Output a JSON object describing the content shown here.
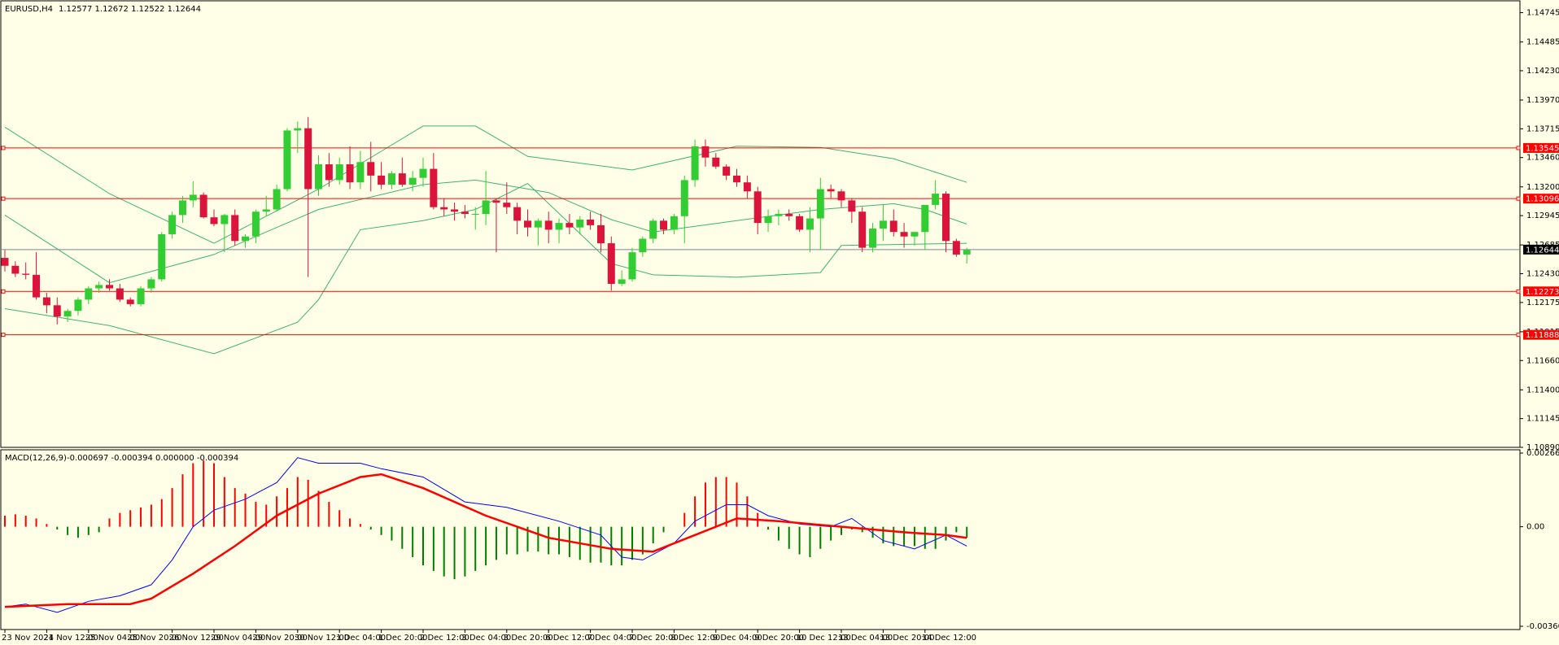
{
  "header": {
    "symbol": "EURUSD,H4",
    "ohlc": "1.12577 1.12672 1.12522 1.12644"
  },
  "colors": {
    "background": "#ffffe8",
    "bull": "#32cd32",
    "bear": "#dc143c",
    "band": "#3cb371",
    "level_line": "#ff0000",
    "bid_line": "#778899",
    "macd_main": "#0000ff",
    "macd_signal": "#ff0000",
    "hist_pos": "#ff0000",
    "hist_neg": "#008000"
  },
  "chart_data": [
    {
      "type": "candlestick",
      "symbol": "EURUSD",
      "timeframe": "H4",
      "ylim": [
        1.1089,
        1.1485
      ],
      "y_ticks": [
        "1.14745",
        "1.14485",
        "1.14230",
        "1.13970",
        "1.13715",
        "1.13460",
        "1.13200",
        "1.12945",
        "1.12685",
        "1.12430",
        "1.12175",
        "1.11915",
        "1.11660",
        "1.11400",
        "1.11145",
        "1.10890"
      ],
      "x_ticks": [
        "23 Nov 2021",
        "24 Nov 12:00",
        "25 Nov 04:00",
        "25 Nov 20:00",
        "26 Nov 12:00",
        "29 Nov 04:00",
        "29 Nov 20:00",
        "30 Nov 12:00",
        "1 Dec 04:00",
        "1 Dec 20:00",
        "2 Dec 12:00",
        "3 Dec 04:00",
        "3 Dec 20:00",
        "6 Dec 12:00",
        "7 Dec 04:00",
        "7 Dec 20:00",
        "8 Dec 12:00",
        "9 Dec 04:00",
        "9 Dec 20:00",
        "10 Dec 12:00",
        "13 Dec 04:00",
        "13 Dec 20:00",
        "14 Dec 12:00"
      ],
      "levels": [
        {
          "label": "1.13545",
          "value": 1.13545
        },
        {
          "label": "1.13096",
          "value": 1.13096
        },
        {
          "label": "1.12273",
          "value": 1.12273
        },
        {
          "label": "1.11888",
          "value": 1.11888
        }
      ],
      "bid": {
        "label": "1.12644",
        "value": 1.12644
      },
      "candles": [
        [
          1.1257,
          1.1264,
          1.1245,
          1.125
        ],
        [
          1.125,
          1.1254,
          1.124,
          1.1243
        ],
        [
          1.1243,
          1.1253,
          1.1238,
          1.1242
        ],
        [
          1.1242,
          1.1262,
          1.122,
          1.1222
        ],
        [
          1.1222,
          1.1226,
          1.1208,
          1.1215
        ],
        [
          1.1215,
          1.1222,
          1.1198,
          1.1205
        ],
        [
          1.1205,
          1.1212,
          1.12,
          1.121
        ],
        [
          1.121,
          1.1222,
          1.1206,
          1.122
        ],
        [
          1.122,
          1.1232,
          1.1216,
          1.123
        ],
        [
          1.123,
          1.1236,
          1.1226,
          1.1233
        ],
        [
          1.1233,
          1.1238,
          1.1228,
          1.123
        ],
        [
          1.123,
          1.1234,
          1.1218,
          1.122
        ],
        [
          1.122,
          1.1222,
          1.1214,
          1.1216
        ],
        [
          1.1216,
          1.1232,
          1.1214,
          1.123
        ],
        [
          1.123,
          1.124,
          1.1226,
          1.1238
        ],
        [
          1.1238,
          1.128,
          1.1236,
          1.1278
        ],
        [
          1.1278,
          1.1298,
          1.1274,
          1.1295
        ],
        [
          1.1295,
          1.1312,
          1.1288,
          1.1308
        ],
        [
          1.1308,
          1.1325,
          1.1302,
          1.1313
        ],
        [
          1.1313,
          1.1315,
          1.1292,
          1.1293
        ],
        [
          1.1293,
          1.13,
          1.1285,
          1.1287
        ],
        [
          1.1287,
          1.1296,
          1.1262,
          1.1295
        ],
        [
          1.1295,
          1.13,
          1.1268,
          1.1272
        ],
        [
          1.1272,
          1.1278,
          1.1266,
          1.1276
        ],
        [
          1.1276,
          1.13,
          1.127,
          1.1298
        ],
        [
          1.1298,
          1.1312,
          1.1294,
          1.13
        ],
        [
          1.13,
          1.1322,
          1.1298,
          1.1318
        ],
        [
          1.1318,
          1.1372,
          1.1316,
          1.137
        ],
        [
          1.137,
          1.1378,
          1.135,
          1.1372
        ],
        [
          1.1372,
          1.1382,
          1.124,
          1.1318
        ],
        [
          1.1318,
          1.1348,
          1.1312,
          1.134
        ],
        [
          1.134,
          1.135,
          1.132,
          1.1326
        ],
        [
          1.1326,
          1.1346,
          1.1322,
          1.134
        ],
        [
          1.134,
          1.1356,
          1.1318,
          1.1324
        ],
        [
          1.1324,
          1.1352,
          1.1318,
          1.1342
        ],
        [
          1.1342,
          1.136,
          1.1316,
          1.133
        ],
        [
          1.133,
          1.1342,
          1.1318,
          1.1322
        ],
        [
          1.1322,
          1.1334,
          1.1318,
          1.1332
        ],
        [
          1.1332,
          1.1346,
          1.132,
          1.1322
        ],
        [
          1.1322,
          1.1334,
          1.1316,
          1.1328
        ],
        [
          1.1328,
          1.1346,
          1.132,
          1.1336
        ],
        [
          1.1336,
          1.135,
          1.13,
          1.1302
        ],
        [
          1.1302,
          1.131,
          1.1294,
          1.13
        ],
        [
          1.13,
          1.1306,
          1.129,
          1.1298
        ],
        [
          1.1298,
          1.1304,
          1.1292,
          1.1296
        ],
        [
          1.1296,
          1.1302,
          1.1282,
          1.1296
        ],
        [
          1.1296,
          1.1334,
          1.1286,
          1.1308
        ],
        [
          1.1308,
          1.131,
          1.1262,
          1.1306
        ],
        [
          1.1306,
          1.1324,
          1.1296,
          1.1302
        ],
        [
          1.1302,
          1.1306,
          1.1278,
          1.129
        ],
        [
          1.129,
          1.13,
          1.1276,
          1.1284
        ],
        [
          1.1284,
          1.1292,
          1.1268,
          1.129
        ],
        [
          1.129,
          1.1298,
          1.127,
          1.1282
        ],
        [
          1.1282,
          1.1292,
          1.127,
          1.1288
        ],
        [
          1.1288,
          1.1296,
          1.1278,
          1.1284
        ],
        [
          1.1284,
          1.1294,
          1.1278,
          1.1291
        ],
        [
          1.1291,
          1.1298,
          1.1282,
          1.1286
        ],
        [
          1.1286,
          1.1296,
          1.1262,
          1.127
        ],
        [
          1.127,
          1.1276,
          1.1228,
          1.1234
        ],
        [
          1.1234,
          1.1246,
          1.1232,
          1.1238
        ],
        [
          1.1238,
          1.1266,
          1.1236,
          1.1262
        ],
        [
          1.1262,
          1.1276,
          1.1258,
          1.1274
        ],
        [
          1.1274,
          1.1292,
          1.127,
          1.129
        ],
        [
          1.129,
          1.1292,
          1.1278,
          1.1282
        ],
        [
          1.1282,
          1.1296,
          1.1278,
          1.1294
        ],
        [
          1.1294,
          1.133,
          1.127,
          1.1326
        ],
        [
          1.1326,
          1.1362,
          1.132,
          1.1356
        ],
        [
          1.1356,
          1.1362,
          1.1338,
          1.1346
        ],
        [
          1.1346,
          1.135,
          1.1336,
          1.1338
        ],
        [
          1.1338,
          1.134,
          1.1326,
          1.133
        ],
        [
          1.133,
          1.1336,
          1.132,
          1.1324
        ],
        [
          1.1324,
          1.133,
          1.131,
          1.1316
        ],
        [
          1.1316,
          1.132,
          1.1278,
          1.1288
        ],
        [
          1.1288,
          1.13,
          1.128,
          1.1294
        ],
        [
          1.1294,
          1.13,
          1.1286,
          1.1296
        ],
        [
          1.1296,
          1.13,
          1.129,
          1.1294
        ],
        [
          1.1294,
          1.1296,
          1.128,
          1.1282
        ],
        [
          1.1282,
          1.1302,
          1.1262,
          1.1292
        ],
        [
          1.1292,
          1.1328,
          1.1264,
          1.1318
        ],
        [
          1.1318,
          1.1322,
          1.131,
          1.1316
        ],
        [
          1.1316,
          1.1318,
          1.1302,
          1.1308
        ],
        [
          1.1308,
          1.131,
          1.1288,
          1.1298
        ],
        [
          1.1298,
          1.1302,
          1.1262,
          1.1266
        ],
        [
          1.1266,
          1.1288,
          1.1262,
          1.1283
        ],
        [
          1.1283,
          1.1304,
          1.1272,
          1.129
        ],
        [
          1.129,
          1.13,
          1.1276,
          1.128
        ],
        [
          1.128,
          1.1288,
          1.1266,
          1.1276
        ],
        [
          1.1276,
          1.128,
          1.1268,
          1.128
        ],
        [
          1.128,
          1.1304,
          1.1264,
          1.1304
        ],
        [
          1.1304,
          1.1326,
          1.13,
          1.1314
        ],
        [
          1.1314,
          1.1316,
          1.1262,
          1.1272
        ],
        [
          1.1272,
          1.1274,
          1.1258,
          1.126
        ],
        [
          1.126,
          1.1266,
          1.1252,
          1.1264
        ]
      ],
      "bollinger": {
        "upper_points": [
          [
            0,
            1.1373
          ],
          [
            10,
            1.1314
          ],
          [
            20,
            1.127
          ],
          [
            30,
            1.1318
          ],
          [
            40,
            1.1374
          ],
          [
            45,
            1.1374
          ],
          [
            48,
            1.1358
          ],
          [
            50,
            1.1347
          ],
          [
            60,
            1.1335
          ],
          [
            70,
            1.1356
          ],
          [
            78,
            1.1355
          ],
          [
            85,
            1.1345
          ],
          [
            92,
            1.1324
          ]
        ],
        "middle_points": [
          [
            0,
            1.1295
          ],
          [
            10,
            1.1235
          ],
          [
            20,
            1.126
          ],
          [
            28,
            1.1292
          ],
          [
            30,
            1.13
          ],
          [
            40,
            1.1322
          ],
          [
            45,
            1.1326
          ],
          [
            52,
            1.1315
          ],
          [
            58,
            1.1291
          ],
          [
            62,
            1.128
          ],
          [
            70,
            1.129
          ],
          [
            78,
            1.13
          ],
          [
            85,
            1.1305
          ],
          [
            88,
            1.13
          ],
          [
            92,
            1.1287
          ]
        ],
        "lower_points": [
          [
            0,
            1.1212
          ],
          [
            10,
            1.1197
          ],
          [
            20,
            1.1172
          ],
          [
            28,
            1.12
          ],
          [
            30,
            1.122
          ],
          [
            34,
            1.1282
          ],
          [
            40,
            1.129
          ],
          [
            45,
            1.13
          ],
          [
            50,
            1.1323
          ],
          [
            58,
            1.1252
          ],
          [
            62,
            1.1242
          ],
          [
            70,
            1.124
          ],
          [
            78,
            1.1244
          ],
          [
            80,
            1.1268
          ],
          [
            92,
            1.127
          ]
        ]
      }
    },
    {
      "type": "line",
      "indicator": "MACD(12,26,9)",
      "values_text": "-0.000697 -0.000394 0.000000 -0.000394",
      "ylim": [
        -0.003605,
        0.002669
      ],
      "y_ticks": [
        "0.002669",
        "0.00",
        "-0.003605"
      ],
      "histogram": [
        0.0004,
        0.00045,
        0.0004,
        0.0003,
        0.0001,
        -0.0001,
        -0.0003,
        -0.0004,
        -0.0003,
        -0.0002,
        0.0003,
        0.0005,
        0.0006,
        0.0007,
        0.0008,
        0.001,
        0.0014,
        0.0019,
        0.0023,
        0.0024,
        0.0023,
        0.0018,
        0.0014,
        0.0012,
        0.0009,
        0.0008,
        0.0011,
        0.0014,
        0.0018,
        0.0017,
        0.0013,
        0.0009,
        0.0006,
        0.0003,
        0.0001,
        -0.0001,
        -0.0003,
        -0.0005,
        -0.0008,
        -0.0011,
        -0.0014,
        -0.0016,
        -0.0018,
        -0.0019,
        -0.0018,
        -0.0016,
        -0.0014,
        -0.0012,
        -0.001,
        -0.001,
        -0.0009,
        -0.0009,
        -0.001,
        -0.001,
        -0.0011,
        -0.0012,
        -0.0013,
        -0.0013,
        -0.0014,
        -0.0014,
        -0.0012,
        -0.001,
        -0.0006,
        -0.0002,
        0.0,
        0.0005,
        0.0011,
        0.0016,
        0.0018,
        0.0018,
        0.0016,
        0.0011,
        0.0005,
        -0.0001,
        -0.0005,
        -0.0008,
        -0.001,
        -0.0011,
        -0.0008,
        -0.0005,
        -0.0003,
        -0.0001,
        -0.0002,
        -0.0004,
        -0.0006,
        -0.0007,
        -0.0007,
        -0.0007,
        -0.0008,
        -0.0008,
        -0.0005,
        -0.0002,
        -0.0004
      ],
      "main_points": [
        [
          0,
          -0.0029
        ],
        [
          2,
          -0.0028
        ],
        [
          5,
          -0.0031
        ],
        [
          8,
          -0.0027
        ],
        [
          11,
          -0.0025
        ],
        [
          14,
          -0.0021
        ],
        [
          16,
          -0.0012
        ],
        [
          18,
          0.0
        ],
        [
          20,
          0.0006
        ],
        [
          23,
          0.001
        ],
        [
          26,
          0.0016
        ],
        [
          28,
          0.0025
        ],
        [
          30,
          0.0023
        ],
        [
          34,
          0.0023
        ],
        [
          36,
          0.0021
        ],
        [
          40,
          0.0018
        ],
        [
          44,
          0.0009
        ],
        [
          48,
          0.0007
        ],
        [
          53,
          0.0002
        ],
        [
          57,
          -0.0003
        ],
        [
          59,
          -0.0011
        ],
        [
          61,
          -0.0012
        ],
        [
          64,
          -0.0006
        ],
        [
          66,
          0.0002
        ],
        [
          69,
          0.0008
        ],
        [
          71,
          0.0008
        ],
        [
          73,
          0.0004
        ],
        [
          76,
          0.0001
        ],
        [
          79,
          0.0
        ],
        [
          81,
          0.0003
        ],
        [
          84,
          -0.0005
        ],
        [
          87,
          -0.0008
        ],
        [
          90,
          -0.0003
        ],
        [
          92,
          -0.0007
        ]
      ],
      "signal_points": [
        [
          0,
          -0.0029
        ],
        [
          6,
          -0.0028
        ],
        [
          12,
          -0.0028
        ],
        [
          14,
          -0.0026
        ],
        [
          18,
          -0.0017
        ],
        [
          22,
          -0.0007
        ],
        [
          26,
          0.0004
        ],
        [
          30,
          0.0012
        ],
        [
          34,
          0.0018
        ],
        [
          36,
          0.0019
        ],
        [
          40,
          0.0014
        ],
        [
          46,
          0.0004
        ],
        [
          52,
          -0.0004
        ],
        [
          58,
          -0.0008
        ],
        [
          62,
          -0.0009
        ],
        [
          66,
          -0.0003
        ],
        [
          70,
          0.0003
        ],
        [
          74,
          0.0002
        ],
        [
          80,
          0.0
        ],
        [
          86,
          -0.0002
        ],
        [
          90,
          -0.0003
        ],
        [
          92,
          -0.0004
        ]
      ]
    }
  ]
}
